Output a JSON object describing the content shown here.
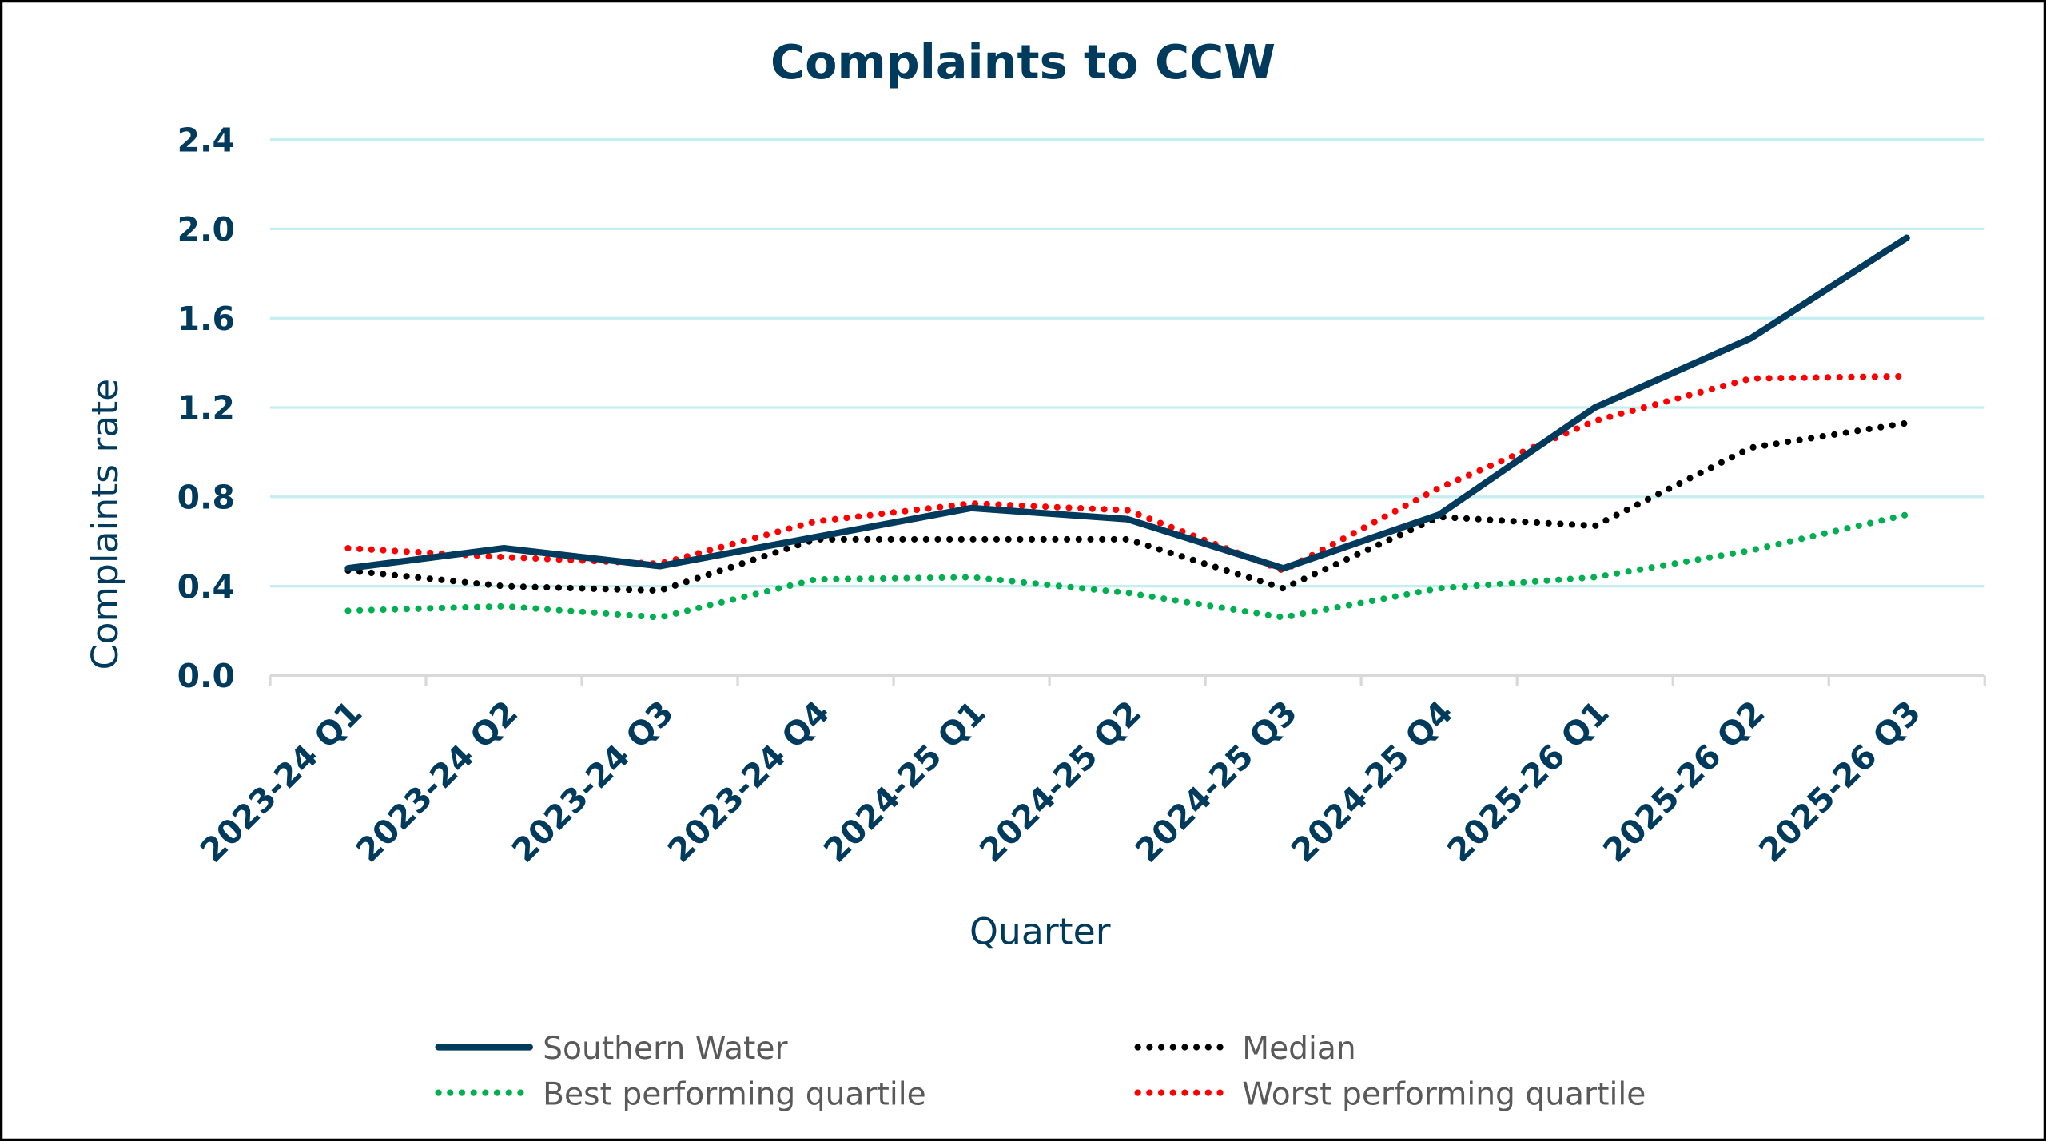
{
  "chart_data": {
    "type": "line",
    "title": "Complaints to CCW",
    "xlabel": "Quarter",
    "ylabel": "Complaints rate",
    "ylim": [
      0,
      2.4
    ],
    "yticks": [
      "0.0",
      "0.4",
      "0.8",
      "1.2",
      "1.6",
      "2.0",
      "2.4"
    ],
    "grid": true,
    "legend_position": "bottom",
    "categories": [
      "2023-24 Q1",
      "2023-24 Q2",
      "2023-24 Q3",
      "2023-24 Q4",
      "2024-25 Q1",
      "2024-25 Q2",
      "2024-25 Q3",
      "2024-25 Q4",
      "2025-26 Q1",
      "2025-26 Q2",
      "2025-26 Q3"
    ],
    "series": [
      {
        "name": "Southern Water",
        "style": "solid",
        "color": "#003A5D",
        "values": [
          0.48,
          0.57,
          0.49,
          0.62,
          0.75,
          0.7,
          0.48,
          0.72,
          1.2,
          1.51,
          1.96
        ]
      },
      {
        "name": "Median",
        "style": "dotted",
        "color": "#000000",
        "values": [
          0.47,
          0.4,
          0.38,
          0.61,
          0.61,
          0.61,
          0.39,
          0.71,
          0.67,
          1.02,
          1.13
        ]
      },
      {
        "name": "Best performing quartile",
        "style": "dotted",
        "color": "#00B050",
        "values": [
          0.29,
          0.31,
          0.26,
          0.43,
          0.44,
          0.37,
          0.26,
          0.39,
          0.44,
          0.56,
          0.72
        ]
      },
      {
        "name": "Worst performing quartile",
        "style": "dotted",
        "color": "#FF0000",
        "values": [
          0.57,
          0.53,
          0.5,
          0.69,
          0.77,
          0.74,
          0.47,
          0.84,
          1.14,
          1.33,
          1.34
        ]
      }
    ]
  },
  "colors": {
    "text": "#003A5D",
    "grid": "#C5EEF0",
    "axis": "#D9D9D9"
  }
}
